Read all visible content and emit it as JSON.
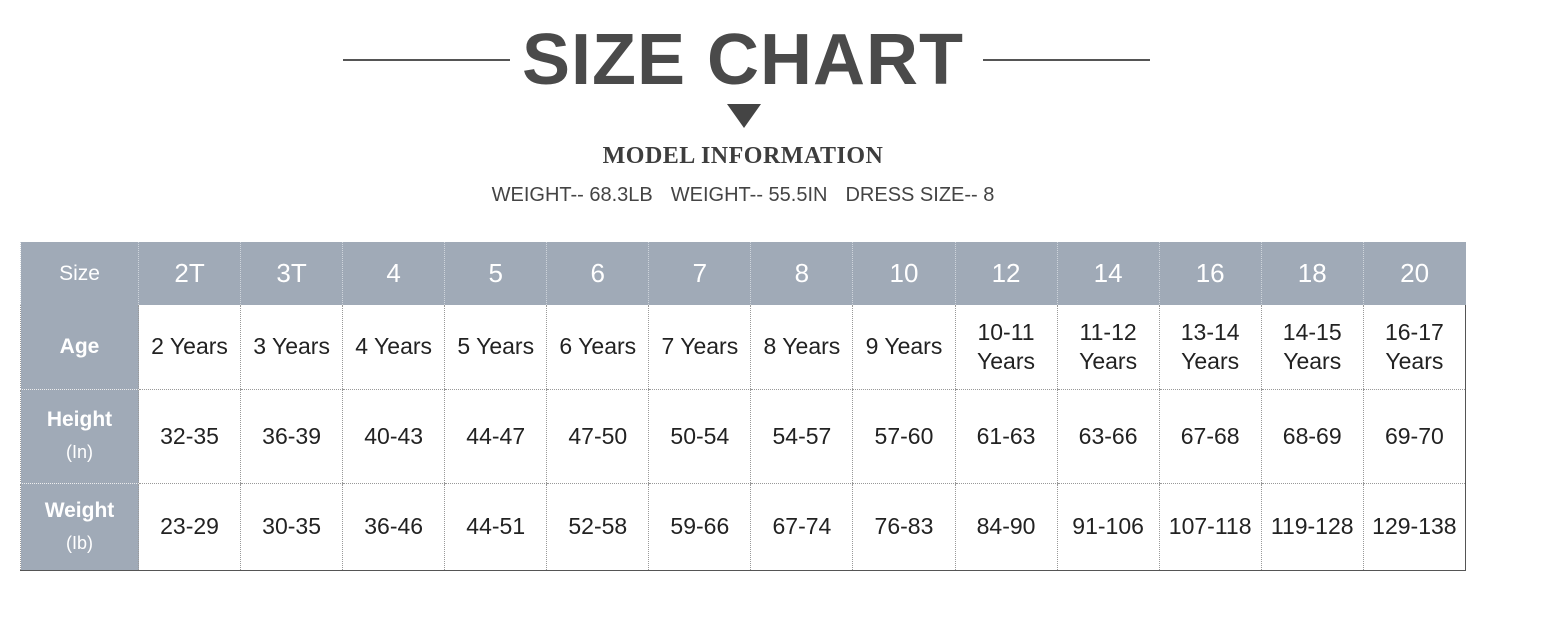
{
  "title": "SIZE CHART",
  "subtitle": "MODEL INFORMATION",
  "model_info": [
    "WEIGHT-- 68.3LB",
    "WEIGHT-- 55.5IN",
    "DRESS SIZE-- 8"
  ],
  "table": {
    "header": {
      "label": "Size",
      "sizes": [
        "2T",
        "3T",
        "4",
        "5",
        "6",
        "7",
        "8",
        "10",
        "12",
        "14",
        "16",
        "18",
        "20"
      ]
    },
    "rows": [
      {
        "label": "Age",
        "cells": [
          "2 Years",
          "3 Years",
          "4 Years",
          "5 Years",
          "6 Years",
          "7 Years",
          "8 Years",
          "9 Years",
          "10-11 Years",
          "11-12 Years",
          "13-14 Years",
          "14-15 Years",
          "16-17 Years"
        ]
      },
      {
        "label": "Height",
        "unit": "(In)",
        "cells": [
          "32-35",
          "36-39",
          "40-43",
          "44-47",
          "47-50",
          "50-54",
          "54-57",
          "57-60",
          "61-63",
          "63-66",
          "67-68",
          "68-69",
          "69-70"
        ]
      },
      {
        "label": "Weight",
        "unit": "(Ib)",
        "cells": [
          "23-29",
          "30-35",
          "36-46",
          "44-51",
          "52-58",
          "59-66",
          "67-74",
          "76-83",
          "84-90",
          "91-106",
          "107-118",
          "119-128",
          "129-138"
        ]
      }
    ]
  }
}
